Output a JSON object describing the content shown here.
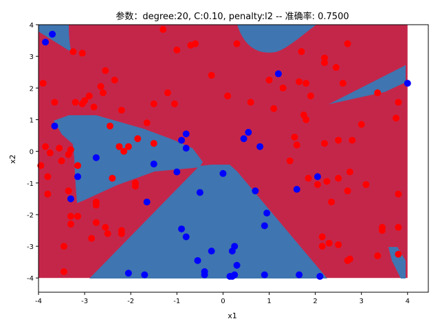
{
  "chart_data": {
    "type": "scatter",
    "title": "参数：degree:20, C:0.10, penalty:l2 -- 准确率: 0.7500",
    "xlabel": "x1",
    "ylabel": "x2",
    "xlim": [
      -4.0,
      4.45
    ],
    "ylim": [
      -4.45,
      4.0
    ],
    "xticks": [
      "-4",
      "-3",
      "-2",
      "-1",
      "0",
      "1",
      "2",
      "3",
      "4"
    ],
    "yticks": [
      "-4",
      "-3",
      "-2",
      "-1",
      "0",
      "1",
      "2",
      "3",
      "4"
    ],
    "grid": false,
    "legend": "none",
    "background": {
      "type": "decision-region",
      "extent_x": [
        -4.0,
        4.0
      ],
      "extent_y": [
        -4.0,
        4.0
      ],
      "class_colors": {
        "red_region": "#c4264a",
        "blue_region": "#3f75b0"
      }
    },
    "series": [
      {
        "color": "#ff0000",
        "points": [
          [
            -3.95,
            -0.45
          ],
          [
            -3.9,
            2.15
          ],
          [
            -3.85,
            0.15
          ],
          [
            -3.8,
            -0.8
          ],
          [
            -3.8,
            -1.35
          ],
          [
            -3.75,
            -0.05
          ],
          [
            -3.65,
            1.55
          ],
          [
            -3.55,
            0.1
          ],
          [
            -3.5,
            -0.3
          ],
          [
            -3.45,
            -3.0
          ],
          [
            -3.45,
            -3.8
          ],
          [
            -3.35,
            -0.1
          ],
          [
            -3.35,
            -1.25
          ],
          [
            -3.3,
            -2.3
          ],
          [
            -3.3,
            -2.05
          ],
          [
            -3.3,
            0.05
          ],
          [
            -3.25,
            3.15
          ],
          [
            -3.2,
            1.55
          ],
          [
            -3.15,
            -0.45
          ],
          [
            -3.15,
            -2.05
          ],
          [
            -3.05,
            3.1
          ],
          [
            -3.05,
            1.5
          ],
          [
            -3.0,
            1.6
          ],
          [
            -2.9,
            1.75
          ],
          [
            -2.85,
            -2.75
          ],
          [
            -2.8,
            1.4
          ],
          [
            -2.75,
            -1.6
          ],
          [
            -2.75,
            -2.25
          ],
          [
            -2.75,
            -1.7
          ],
          [
            -2.65,
            2.05
          ],
          [
            -2.6,
            1.85
          ],
          [
            -2.55,
            -2.4
          ],
          [
            -2.55,
            2.55
          ],
          [
            -2.5,
            -2.6
          ],
          [
            -2.45,
            0.8
          ],
          [
            -2.4,
            -0.85
          ],
          [
            -2.35,
            2.25
          ],
          [
            -2.25,
            0.15
          ],
          [
            -2.2,
            -2.5
          ],
          [
            -2.2,
            -2.6
          ],
          [
            -2.2,
            1.3
          ],
          [
            -2.15,
            0.0
          ],
          [
            -2.05,
            0.15
          ],
          [
            -1.9,
            -1.0
          ],
          [
            -1.9,
            -1.1
          ],
          [
            -1.85,
            0.4
          ],
          [
            -1.65,
            0.9
          ],
          [
            -1.5,
            1.5
          ],
          [
            -1.5,
            0.25
          ],
          [
            -1.3,
            3.85
          ],
          [
            -1.2,
            1.85
          ],
          [
            -1.05,
            1.5
          ],
          [
            -1.0,
            3.2
          ],
          [
            -0.7,
            3.35
          ],
          [
            -0.6,
            3.4
          ],
          [
            -0.25,
            2.4
          ],
          [
            0.1,
            1.75
          ],
          [
            0.3,
            3.4
          ],
          [
            0.6,
            1.55
          ],
          [
            1.0,
            2.25
          ],
          [
            1.1,
            1.35
          ],
          [
            1.3,
            2.0
          ],
          [
            1.45,
            -0.3
          ],
          [
            1.55,
            0.45
          ],
          [
            1.6,
            0.2
          ],
          [
            1.65,
            2.2
          ],
          [
            1.7,
            3.15
          ],
          [
            1.75,
            1.15
          ],
          [
            1.8,
            1.0
          ],
          [
            1.8,
            2.15
          ],
          [
            1.85,
            -0.85
          ],
          [
            1.9,
            1.75
          ],
          [
            2.05,
            -1.05
          ],
          [
            2.15,
            -2.7
          ],
          [
            2.15,
            -3.0
          ],
          [
            2.2,
            2.8
          ],
          [
            2.2,
            2.95
          ],
          [
            2.2,
            0.25
          ],
          [
            2.25,
            -0.95
          ],
          [
            2.3,
            -2.9
          ],
          [
            2.35,
            -1.6
          ],
          [
            2.45,
            2.65
          ],
          [
            2.5,
            -0.85
          ],
          [
            2.5,
            -2.95
          ],
          [
            2.5,
            0.35
          ],
          [
            2.6,
            2.15
          ],
          [
            2.7,
            -1.25
          ],
          [
            2.7,
            3.4
          ],
          [
            2.7,
            -3.45
          ],
          [
            2.75,
            -0.65
          ],
          [
            2.75,
            -3.4
          ],
          [
            2.8,
            0.35
          ],
          [
            3.0,
            0.85
          ],
          [
            3.1,
            -1.05
          ],
          [
            3.35,
            -3.3
          ],
          [
            3.35,
            1.85
          ],
          [
            3.45,
            -2.4
          ],
          [
            3.45,
            -2.5
          ],
          [
            3.75,
            1.05
          ],
          [
            3.8,
            1.55
          ],
          [
            3.8,
            -1.35
          ],
          [
            3.8,
            -2.4
          ],
          [
            3.8,
            -3.25
          ]
        ]
      },
      {
        "color": "#0000ff",
        "points": [
          [
            -3.85,
            3.45
          ],
          [
            -3.7,
            3.7
          ],
          [
            -3.65,
            0.8
          ],
          [
            -3.3,
            -1.5
          ],
          [
            -3.15,
            -0.8
          ],
          [
            -2.75,
            -0.2
          ],
          [
            -2.05,
            -3.85
          ],
          [
            -1.7,
            -3.9
          ],
          [
            -1.65,
            -1.6
          ],
          [
            -1.5,
            -0.4
          ],
          [
            -1.0,
            -0.65
          ],
          [
            -0.9,
            0.35
          ],
          [
            -0.9,
            -2.45
          ],
          [
            -0.8,
            -2.7
          ],
          [
            -0.8,
            0.55
          ],
          [
            -0.8,
            0.1
          ],
          [
            -0.55,
            -3.45
          ],
          [
            -0.5,
            -1.3
          ],
          [
            -0.4,
            -3.8
          ],
          [
            -0.4,
            -3.9
          ],
          [
            -0.25,
            -3.15
          ],
          [
            0.0,
            -0.7
          ],
          [
            0.15,
            -3.95
          ],
          [
            0.2,
            -3.95
          ],
          [
            0.2,
            -3.15
          ],
          [
            0.25,
            -3.0
          ],
          [
            0.25,
            -3.9
          ],
          [
            0.3,
            -3.6
          ],
          [
            0.45,
            0.4
          ],
          [
            0.55,
            0.6
          ],
          [
            0.7,
            -1.25
          ],
          [
            0.8,
            0.15
          ],
          [
            0.9,
            -2.35
          ],
          [
            0.9,
            -3.9
          ],
          [
            0.95,
            -1.95
          ],
          [
            1.2,
            2.45
          ],
          [
            1.6,
            -1.2
          ],
          [
            1.65,
            -3.9
          ],
          [
            2.05,
            -0.8
          ],
          [
            2.1,
            -3.95
          ],
          [
            4.0,
            2.15
          ]
        ]
      }
    ]
  }
}
